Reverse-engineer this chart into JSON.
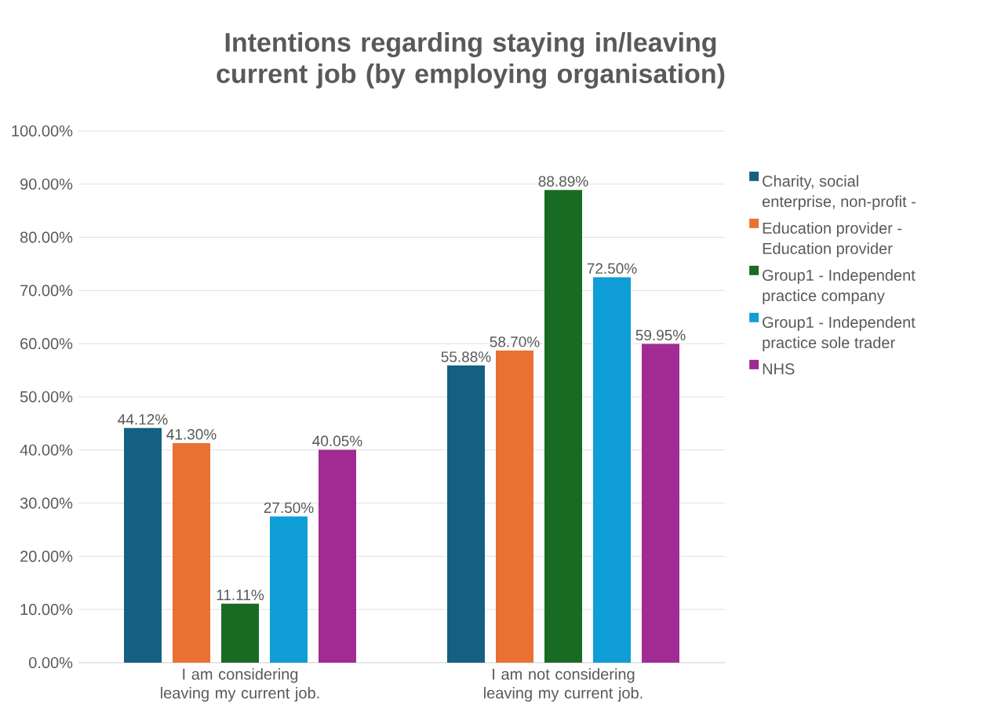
{
  "chart_data": {
    "type": "bar",
    "title": "Intentions regarding staying in/leaving current job (by employing organisation)",
    "categories": [
      "I am considering leaving my current job.",
      "I am not considering leaving my current job."
    ],
    "series": [
      {
        "name": "Charity, social enterprise, non-profit -",
        "color": "#156082",
        "values": [
          44.12,
          55.88
        ],
        "value_labels": [
          "44.12%",
          "55.88%"
        ]
      },
      {
        "name": "Education provider - Education provider",
        "color": "#e97132",
        "values": [
          41.3,
          58.7
        ],
        "value_labels": [
          "41.30%",
          "58.70%"
        ]
      },
      {
        "name": "Group1 - Independent practice company",
        "color": "#196b24",
        "values": [
          11.11,
          88.89
        ],
        "value_labels": [
          "11.11%",
          "88.89%"
        ]
      },
      {
        "name": "Group1 - Independent practice sole trader",
        "color": "#0f9ed5",
        "values": [
          27.5,
          72.5
        ],
        "value_labels": [
          "27.50%",
          "72.50%"
        ]
      },
      {
        "name": "NHS",
        "color": "#a02b93",
        "values": [
          40.05,
          59.95
        ],
        "value_labels": [
          "40.05%",
          "59.95%"
        ]
      }
    ],
    "ylim": [
      0,
      100
    ],
    "yticks": [
      {
        "value": 0,
        "label": "0.00%"
      },
      {
        "value": 10,
        "label": "10.00%"
      },
      {
        "value": 20,
        "label": "20.00%"
      },
      {
        "value": 30,
        "label": "30.00%"
      },
      {
        "value": 40,
        "label": "40.00%"
      },
      {
        "value": 50,
        "label": "50.00%"
      },
      {
        "value": 60,
        "label": "60.00%"
      },
      {
        "value": 70,
        "label": "70.00%"
      },
      {
        "value": 80,
        "label": "80.00%"
      },
      {
        "value": 90,
        "label": "90.00%"
      },
      {
        "value": 100,
        "label": "100.00%"
      }
    ],
    "grid": "y",
    "legend": "right"
  }
}
